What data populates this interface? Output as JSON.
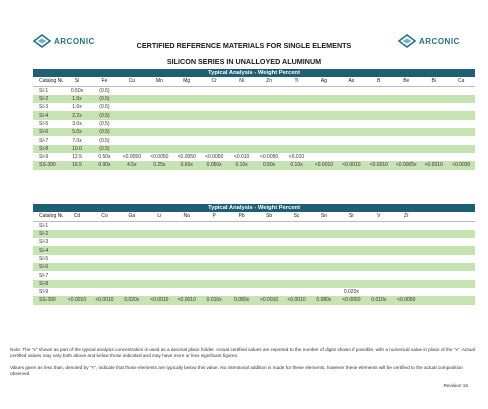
{
  "brand": {
    "name": "ARCONIC",
    "color": "#2a6f86"
  },
  "title": "CERTIFIED REFERENCE MATERIALS FOR SINGLE ELEMENTS",
  "subtitle": "SILICON SERIES IN UNALLOYED ALUMINUM",
  "colors": {
    "band": "#1f5f74",
    "green_row": "#c8e3b3"
  },
  "table1": {
    "band": "Typical Analysis - Weight Percent",
    "catalog_header": "Catalog Number",
    "columns": [
      "Si",
      "Fe",
      "Cu",
      "Mn",
      "Mg",
      "Cr",
      "Ni",
      "Zn",
      "Ti",
      "Ag",
      "As",
      "B",
      "Be",
      "Bi",
      "Ca"
    ],
    "rows": [
      {
        "id": "SI-1",
        "v": [
          "0.50x",
          "(0.5)",
          "",
          "",
          "",
          "",
          "",
          "",
          "",
          "",
          "",
          "",
          "",
          "",
          ""
        ]
      },
      {
        "id": "SI-2",
        "v": [
          "1.0x",
          "(0.5)",
          "",
          "",
          "",
          "",
          "",
          "",
          "",
          "",
          "",
          "",
          "",
          "",
          ""
        ]
      },
      {
        "id": "SI-3",
        "v": [
          "1.6x",
          "(0.5)",
          "",
          "",
          "",
          "",
          "",
          "",
          "",
          "",
          "",
          "",
          "",
          "",
          ""
        ]
      },
      {
        "id": "SI-4",
        "v": [
          "2.2x",
          "(0.5)",
          "",
          "",
          "",
          "",
          "",
          "",
          "",
          "",
          "",
          "",
          "",
          "",
          ""
        ]
      },
      {
        "id": "SI-5",
        "v": [
          "3.0x",
          "(0.5)",
          "",
          "",
          "",
          "",
          "",
          "",
          "",
          "",
          "",
          "",
          "",
          "",
          ""
        ]
      },
      {
        "id": "SI-6",
        "v": [
          "5.0x",
          "(0.5)",
          "",
          "",
          "",
          "",
          "",
          "",
          "",
          "",
          "",
          "",
          "",
          "",
          ""
        ]
      },
      {
        "id": "SI-7",
        "v": [
          "7.0x",
          "(0.5)",
          "",
          "",
          "",
          "",
          "",
          "",
          "",
          "",
          "",
          "",
          "",
          "",
          ""
        ]
      },
      {
        "id": "SI-8",
        "v": [
          "10.0",
          "(0.5)",
          "",
          "",
          "",
          "",
          "",
          "",
          "",
          "",
          "",
          "",
          "",
          "",
          ""
        ]
      },
      {
        "id": "SI-9",
        "v": [
          "12.5",
          "0.50x",
          "<0.0050",
          "<0.0050",
          "<0.0050",
          "<0.0050",
          "<0.010",
          "<0.0050",
          "<0.010",
          "",
          "",
          "",
          "",
          "",
          ""
        ]
      },
      {
        "id": "SS-390",
        "v": [
          "16.5",
          "0.90x",
          "4.5x",
          "0.25x",
          "0.60x",
          "0.050x",
          "0.10x",
          "0.50x",
          "0.10x",
          "<0.0010",
          "<0.0010",
          "<0.0010",
          "<0.0005x",
          "<0.0010",
          "<0.0030"
        ]
      }
    ]
  },
  "table2": {
    "band": "Typical Analysis - Weight Percent",
    "catalog_header": "Catalog Number",
    "columns": [
      "Cd",
      "Co",
      "Ga",
      "Li",
      "Na",
      "P",
      "Pb",
      "Sb",
      "Sc",
      "Sn",
      "Sr",
      "V",
      "Zr",
      "",
      ""
    ],
    "rows": [
      {
        "id": "SI-1",
        "v": [
          "",
          "",
          "",
          "",
          "",
          "",
          "",
          "",
          "",
          "",
          "",
          "",
          "",
          "",
          ""
        ]
      },
      {
        "id": "SI-2",
        "v": [
          "",
          "",
          "",
          "",
          "",
          "",
          "",
          "",
          "",
          "",
          "",
          "",
          "",
          "",
          ""
        ]
      },
      {
        "id": "SI-3",
        "v": [
          "",
          "",
          "",
          "",
          "",
          "",
          "",
          "",
          "",
          "",
          "",
          "",
          "",
          "",
          ""
        ]
      },
      {
        "id": "SI-4",
        "v": [
          "",
          "",
          "",
          "",
          "",
          "",
          "",
          "",
          "",
          "",
          "",
          "",
          "",
          "",
          ""
        ]
      },
      {
        "id": "SI-5",
        "v": [
          "",
          "",
          "",
          "",
          "",
          "",
          "",
          "",
          "",
          "",
          "",
          "",
          "",
          "",
          ""
        ]
      },
      {
        "id": "SI-6",
        "v": [
          "",
          "",
          "",
          "",
          "",
          "",
          "",
          "",
          "",
          "",
          "",
          "",
          "",
          "",
          ""
        ]
      },
      {
        "id": "SI-7",
        "v": [
          "",
          "",
          "",
          "",
          "",
          "",
          "",
          "",
          "",
          "",
          "",
          "",
          "",
          "",
          ""
        ]
      },
      {
        "id": "SI-8",
        "v": [
          "",
          "",
          "",
          "",
          "",
          "",
          "",
          "",
          "",
          "",
          "",
          "",
          "",
          "",
          ""
        ]
      },
      {
        "id": "SI-9",
        "v": [
          "",
          "",
          "",
          "",
          "",
          "",
          "",
          "",
          "",
          "",
          "0.020x",
          "",
          "",
          "",
          ""
        ]
      },
      {
        "id": "SS-390",
        "v": [
          "<0.0010",
          "<0.0010",
          "0.020x",
          "<0.0010",
          "<0.0010",
          "0.010x",
          "0.080x",
          "<0.0010",
          "<0.0010",
          "0.080x",
          "<0.0050",
          "0.010x",
          "<0.0050",
          "",
          ""
        ]
      }
    ]
  },
  "notes": {
    "note1": "Note: The \"x\" shown as part of the typical analysis concentration is used as a decimal place holder. Actual certified values are reported to the number of digits shown if possible, with a numerical value in place of the \"x\". Actual certified values may vary both above and below those indicated and may have more or less significant figures.",
    "note2": "Values given as less than, denoted by \"<\", indicate that those elements are typically below this value. No intentional addition is made for these elements, however these elements will be certified to the actual composition observed.",
    "revision": "Revision 16"
  }
}
